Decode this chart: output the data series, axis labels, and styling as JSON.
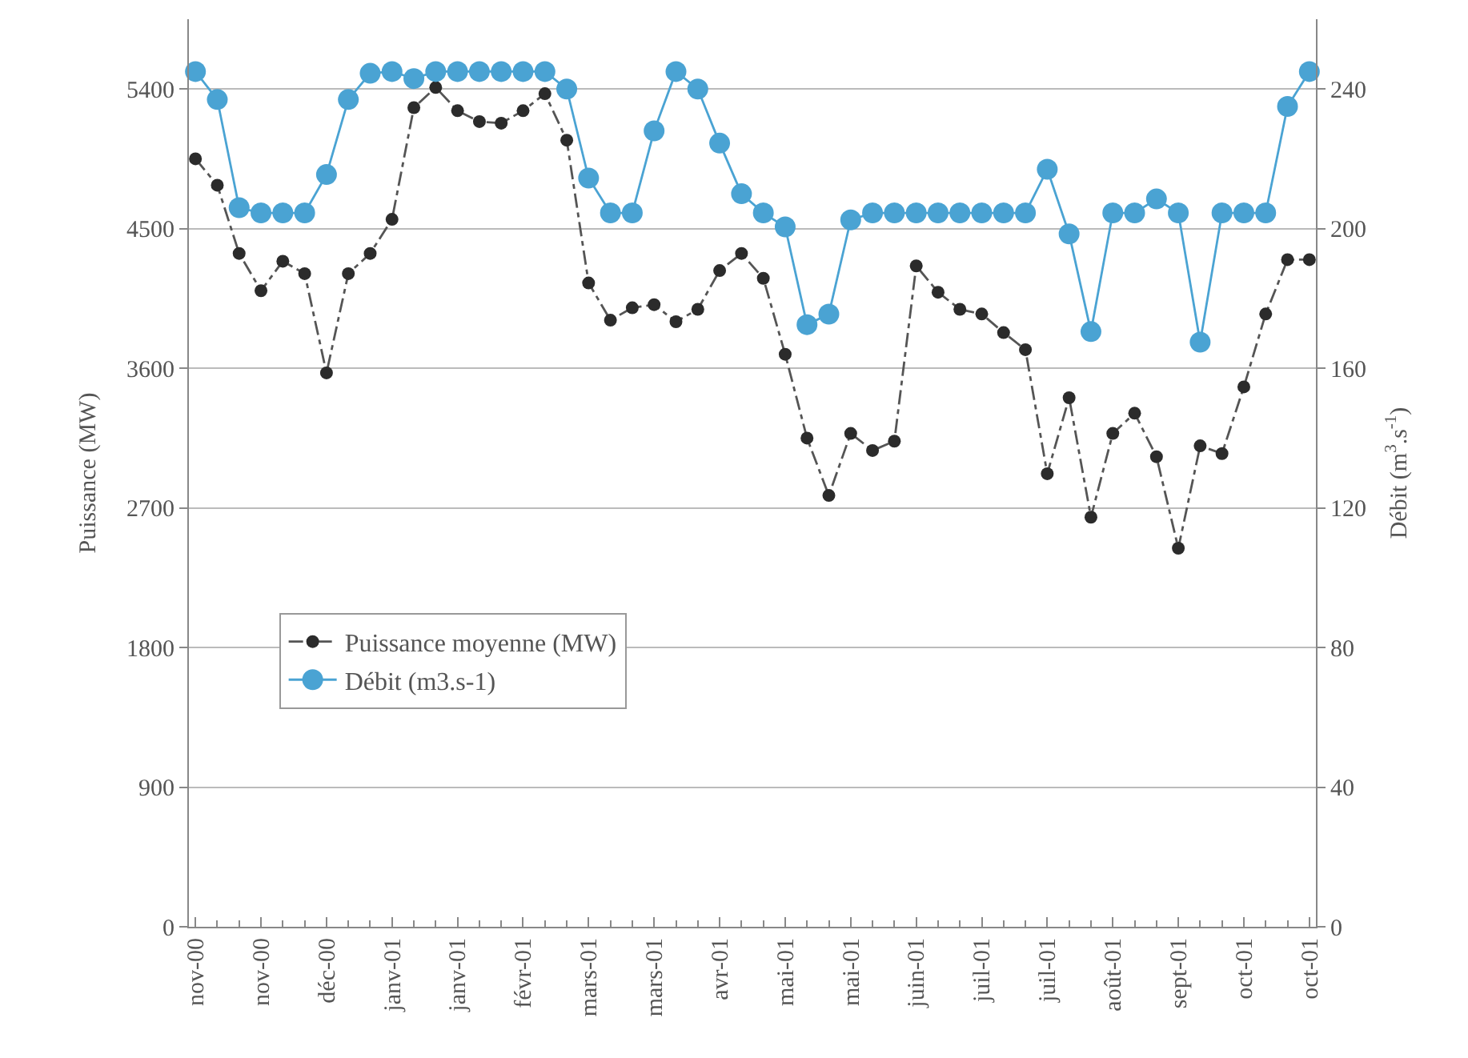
{
  "chart_data": {
    "type": "line",
    "ylabel": "Puissance (MW)",
    "y2label": "Débit (m$^{3}$.s$^{-1}$)",
    "categories": [
      "nov-00",
      null,
      null,
      "nov-00",
      null,
      null,
      "déc-00",
      null,
      null,
      "janv-01",
      null,
      null,
      "janv-01",
      null,
      null,
      "févr-01",
      null,
      null,
      "mars-01",
      null,
      null,
      "mars-01",
      null,
      null,
      "avr-01",
      null,
      null,
      "mai-01",
      null,
      null,
      "mai-01",
      null,
      null,
      "juin-01",
      null,
      null,
      "juil-01",
      null,
      null,
      "juil-01",
      null,
      null,
      "août-01",
      null,
      null,
      "sept-01",
      null,
      null,
      "oct-01",
      null,
      null,
      "oct-01"
    ],
    "series": [
      {
        "name": "Puissance moyenne (MW)",
        "color": "#2b2b2b",
        "line_style": "dashed",
        "marker": "circle",
        "values": [
          4950,
          4780,
          4340,
          4100,
          4290,
          4210,
          3570,
          4210,
          4340,
          4560,
          5280,
          5410,
          5260,
          5190,
          5180,
          5260,
          5370,
          5070,
          4150,
          3910,
          3990,
          4010,
          3900,
          3980,
          4230,
          4340,
          4180,
          3690,
          3150,
          2780,
          3180,
          3070,
          3130,
          4260,
          4090,
          3980,
          3950,
          3830,
          3720,
          2920,
          3410,
          2640,
          3180,
          3310,
          3030,
          2440,
          3100,
          3050,
          3480,
          3950,
          4300,
          4300
        ]
      },
      {
        "name": "Débit (m3.s-1)",
        "color": "#4aa3d3",
        "axis": "y2",
        "line_style": "solid",
        "marker": "circle",
        "values": [
          245,
          237,
          206,
          204.5,
          204.5,
          204.5,
          215.5,
          237,
          244.5,
          245,
          243,
          245,
          245,
          245,
          245,
          245,
          245,
          240,
          214.5,
          204.5,
          204.5,
          228,
          245,
          240,
          224.5,
          210,
          204.5,
          200.5,
          172.5,
          175.5,
          202.5,
          204.5,
          204.5,
          204.5,
          204.5,
          204.5,
          204.5,
          204.5,
          204.5,
          217,
          198.5,
          170.5,
          204.5,
          204.5,
          208.5,
          204.5,
          167.5,
          204.5,
          204.5,
          204.5,
          235,
          245
        ]
      }
    ],
    "ylim": [
      0,
      5850
    ],
    "yticks": [
      0,
      900,
      1800,
      2700,
      3600,
      4500,
      5400
    ],
    "y2lim": [
      0,
      260
    ],
    "y2ticks": [
      0,
      40,
      80,
      120,
      160,
      200,
      240
    ],
    "grid": "y",
    "legend": "bottom left"
  }
}
